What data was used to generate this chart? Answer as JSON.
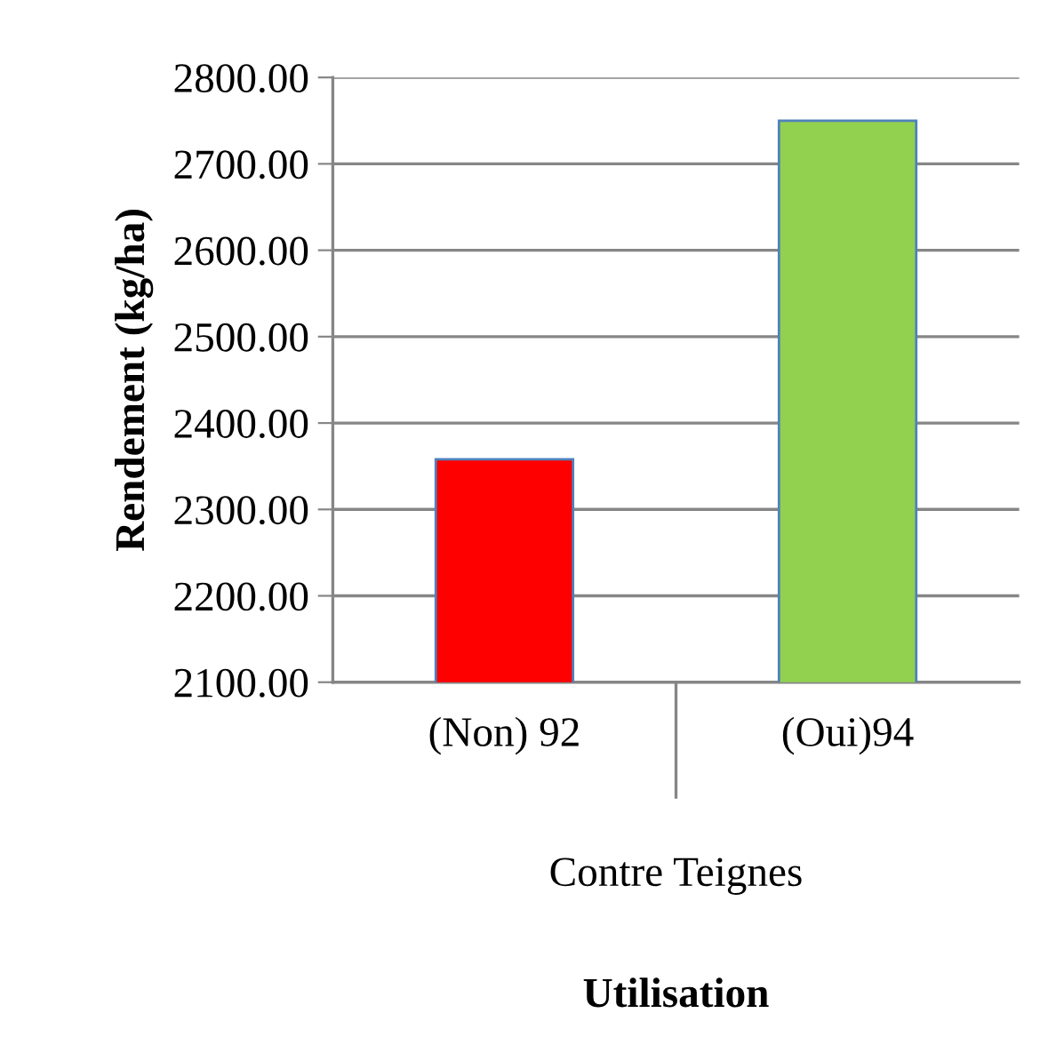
{
  "chart_data": {
    "type": "bar",
    "ylabel": "Rendement (kg/ha)",
    "categories": [
      "(Non) 92",
      "(Oui)94"
    ],
    "values": [
      2358,
      2750
    ],
    "colors": [
      "#ff0000",
      "#92d050"
    ],
    "ylim": [
      2100,
      2800
    ],
    "yticks": [
      {
        "value": 2100,
        "label": "2100.00"
      },
      {
        "value": 2200,
        "label": "2200.00"
      },
      {
        "value": 2300,
        "label": "2300.00"
      },
      {
        "value": 2400,
        "label": "2400.00"
      },
      {
        "value": 2500,
        "label": "2500.00"
      },
      {
        "value": 2600,
        "label": "2600.00"
      },
      {
        "value": 2700,
        "label": "2700.00"
      },
      {
        "value": 2800,
        "label": "2800.00"
      }
    ],
    "grid": "y",
    "annotations": [
      "Contre Teignes",
      "Utilisation"
    ]
  }
}
